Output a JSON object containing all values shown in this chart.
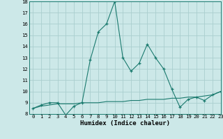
{
  "xlabel": "Humidex (Indice chaleur)",
  "bg_color": "#cce8e8",
  "grid_color": "#aacece",
  "line_color": "#1a7a6e",
  "x_main": [
    0,
    1,
    2,
    3,
    4,
    5,
    6,
    7,
    8,
    9,
    10,
    11,
    12,
    13,
    14,
    15,
    16,
    17,
    18,
    19,
    20,
    21,
    22,
    23
  ],
  "y_main": [
    8.5,
    8.8,
    9.0,
    9.0,
    7.9,
    8.7,
    9.0,
    12.8,
    15.3,
    16.0,
    18.0,
    13.0,
    11.8,
    12.5,
    14.2,
    13.0,
    12.0,
    10.2,
    8.6,
    9.3,
    9.5,
    9.2,
    9.7,
    10.0
  ],
  "x_flat": [
    0,
    1,
    2,
    3,
    4,
    5,
    6,
    7,
    8,
    9,
    10,
    11,
    12,
    13,
    14,
    15,
    16,
    17,
    18,
    19,
    20,
    21,
    22,
    23
  ],
  "y_flat": [
    8.5,
    8.7,
    8.8,
    8.9,
    8.9,
    8.9,
    9.0,
    9.0,
    9.0,
    9.1,
    9.1,
    9.1,
    9.2,
    9.2,
    9.3,
    9.3,
    9.3,
    9.4,
    9.4,
    9.5,
    9.5,
    9.6,
    9.7,
    10.0
  ],
  "ylim": [
    8,
    18
  ],
  "xlim": [
    -0.5,
    23
  ],
  "yticks": [
    8,
    9,
    10,
    11,
    12,
    13,
    14,
    15,
    16,
    17,
    18
  ],
  "xticks": [
    0,
    1,
    2,
    3,
    4,
    5,
    6,
    7,
    8,
    9,
    10,
    11,
    12,
    13,
    14,
    15,
    16,
    17,
    18,
    19,
    20,
    21,
    22,
    23
  ],
  "tick_fontsize": 5.2,
  "xlabel_fontsize": 6.5
}
